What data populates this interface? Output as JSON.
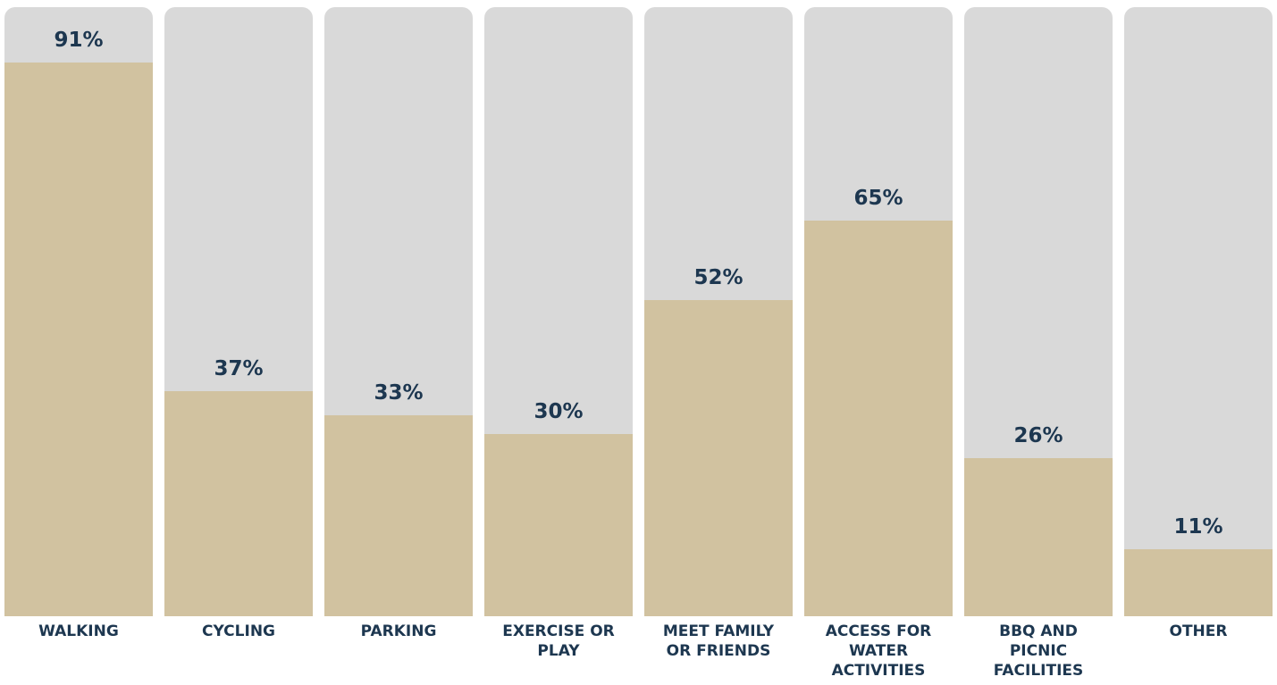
{
  "chart_data": {
    "type": "bar",
    "categories": [
      "WALKING",
      "CYCLING",
      "PARKING",
      "EXERCISE OR PLAY",
      "MEET FAMILY OR FRIENDS",
      "ACCESS FOR WATER ACTIVITIES",
      "BBQ AND PICNIC FACILITIES",
      "OTHER"
    ],
    "values": [
      91,
      37,
      33,
      30,
      52,
      65,
      26,
      11
    ],
    "value_labels": [
      "91%",
      "37%",
      "33%",
      "30%",
      "52%",
      "65%",
      "26%",
      "11%"
    ],
    "color": "#d1c2a0",
    "track_color": "#d9d9d9",
    "ylim": [
      0,
      100
    ]
  }
}
